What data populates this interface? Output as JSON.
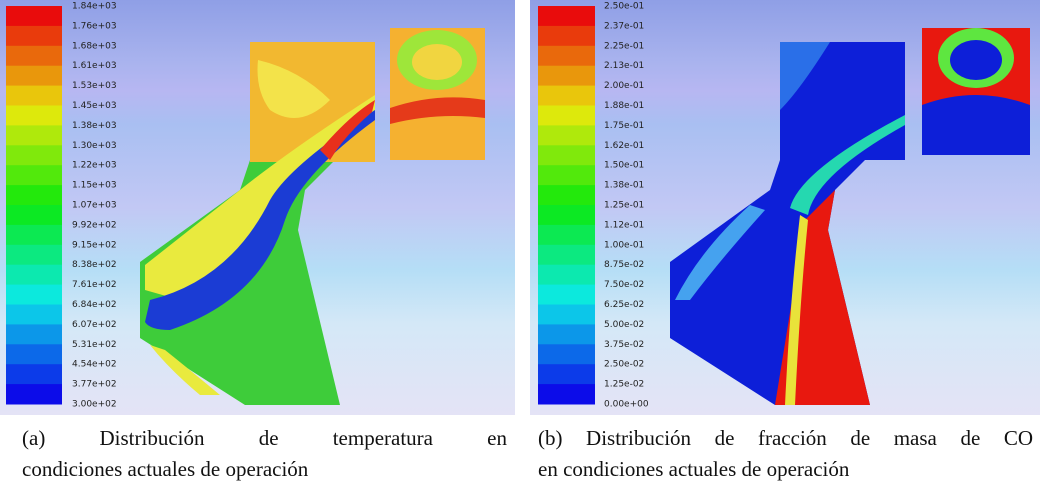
{
  "panels": [
    {
      "colorbar_labels": [
        "1.84e+03",
        "1.76e+03",
        "1.68e+03",
        "1.61e+03",
        "1.53e+03",
        "1.45e+03",
        "1.38e+03",
        "1.30e+03",
        "1.22e+03",
        "1.15e+03",
        "1.07e+03",
        "9.92e+02",
        "9.15e+02",
        "8.38e+02",
        "7.61e+02",
        "6.84e+02",
        "6.07e+02",
        "5.31e+02",
        "4.54e+02",
        "3.77e+02",
        "3.00e+02"
      ],
      "caption": [
        "(a) Distribución de temperatura en",
        "condiciones actuales de operación"
      ]
    },
    {
      "colorbar_labels": [
        "2.50e-01",
        "2.37e-01",
        "2.25e-01",
        "2.13e-01",
        "2.00e-01",
        "1.88e-01",
        "1.75e-01",
        "1.62e-01",
        "1.50e-01",
        "1.38e-01",
        "1.25e-01",
        "1.12e-01",
        "1.00e-01",
        "8.75e-02",
        "7.50e-02",
        "6.25e-02",
        "5.00e-02",
        "3.75e-02",
        "2.50e-02",
        "1.25e-02",
        "0.00e+00"
      ],
      "caption": [
        "(b) Distribución de fracción de masa de CO",
        "en condiciones actuales de operación"
      ]
    }
  ]
}
